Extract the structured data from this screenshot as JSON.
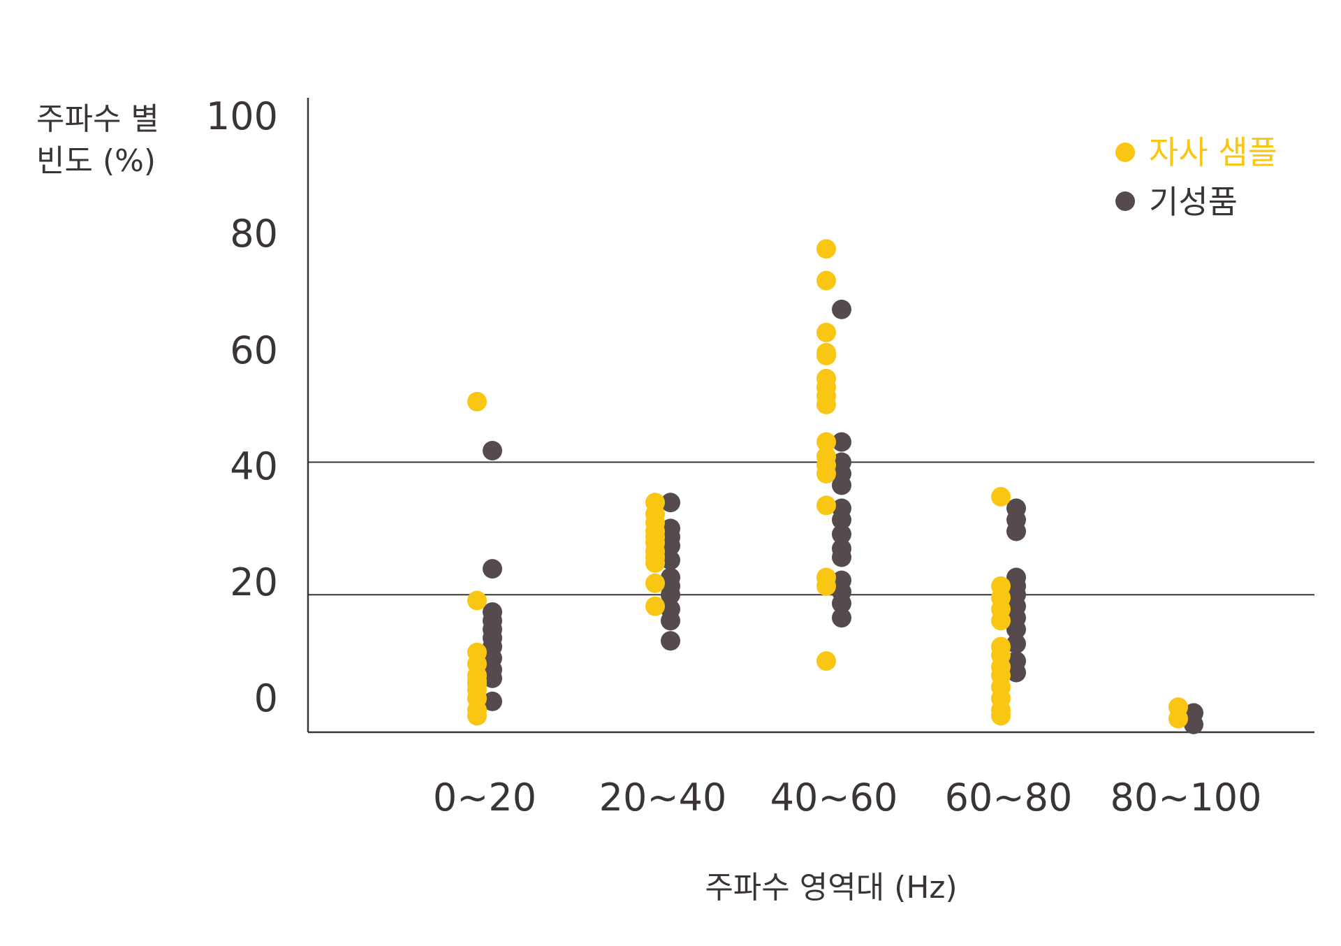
{
  "chart_data": {
    "type": "scatter",
    "ylabel_lines": [
      "주파수 별",
      "빈도 (%)"
    ],
    "xlabel": "주파수 영역대 (Hz)",
    "categories": [
      "0~20",
      "20~40",
      "40~60",
      "60~80",
      "80~100"
    ],
    "y_ticks": [
      "100",
      "80",
      "60",
      "40",
      "20",
      "0"
    ],
    "ylim": [
      -5,
      100
    ],
    "reference_lines": [
      42,
      19
    ],
    "legend_position": "top-right",
    "series": [
      {
        "name": "자사 샘플",
        "color": "#f9c614",
        "points": [
          {
            "category": 0,
            "values": [
              52.5,
              18,
              9,
              7,
              5,
              4,
              3.5,
              2.5,
              1,
              -1,
              -2
            ]
          },
          {
            "category": 1,
            "values": [
              35,
              33,
              31.5,
              30,
              29,
              28,
              26.5,
              25.5,
              24.5,
              21,
              17
            ]
          },
          {
            "category": 2,
            "values": [
              79,
              73.5,
              64.5,
              61,
              60.5,
              56.5,
              55,
              53.5,
              52,
              45.5,
              43,
              41.5,
              40,
              34.5,
              22,
              20.5,
              7.5
            ]
          },
          {
            "category": 3,
            "values": [
              36,
              20.5,
              18.5,
              16.5,
              14.5,
              10,
              8.5,
              6.5,
              5,
              3,
              1,
              -1,
              -2
            ]
          },
          {
            "category": 4,
            "values": [
              -0.5,
              -2.5
            ]
          }
        ]
      },
      {
        "name": "기성품",
        "color": "#554b4d",
        "points": [
          {
            "category": 0,
            "values": [
              44,
              23.5,
              16,
              14.5,
              13,
              11.5,
              10,
              8,
              6,
              4.5,
              0.5
            ]
          },
          {
            "category": 1,
            "values": [
              35,
              30.5,
              29,
              27.5,
              25,
              22,
              20.5,
              19,
              16.5,
              14.5,
              11
            ]
          },
          {
            "category": 2,
            "values": [
              68.5,
              45.5,
              42,
              40,
              38,
              34,
              32,
              29.5,
              27,
              25.5,
              21.5,
              19.5,
              17.5,
              15
            ]
          },
          {
            "category": 3,
            "values": [
              34,
              32,
              30,
              22,
              20.5,
              19,
              17,
              15,
              13,
              10.5,
              7.5,
              5.5
            ]
          },
          {
            "category": 4,
            "values": [
              -1.5,
              -3.5
            ]
          }
        ]
      }
    ]
  }
}
